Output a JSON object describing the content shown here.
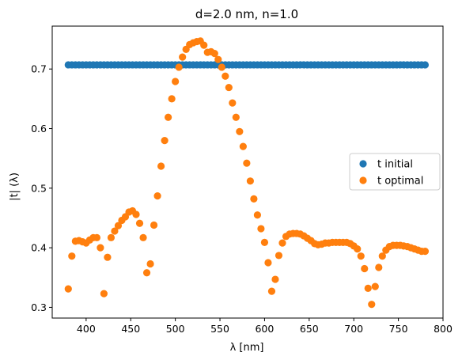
{
  "chart_data": {
    "type": "scatter",
    "title": "d=2.0 nm, n=1.0",
    "xlabel": "λ [nm]",
    "ylabel": "|t| (λ)",
    "xlim": [
      362,
      800
    ],
    "ylim": [
      0.282,
      0.772
    ],
    "xticks": [
      400,
      450,
      500,
      550,
      600,
      650,
      700,
      750,
      800
    ],
    "yticks": [
      0.3,
      0.4,
      0.5,
      0.6,
      0.7
    ],
    "legend_position": "center-right",
    "grid": false,
    "series": [
      {
        "name": "t initial",
        "color": "#1f77b4",
        "x_start": 380,
        "x_end": 780,
        "x_step": 4,
        "constant_y": 0.707
      },
      {
        "name": "t optimal",
        "color": "#ff7f0e",
        "x": [
          380,
          384,
          388,
          392,
          396,
          400,
          404,
          408,
          412,
          416,
          420,
          424,
          428,
          432,
          436,
          440,
          444,
          448,
          452,
          456,
          460,
          464,
          468,
          472,
          476,
          480,
          484,
          488,
          492,
          496,
          500,
          504,
          508,
          512,
          516,
          520,
          524,
          528,
          532,
          536,
          540,
          544,
          548,
          552,
          556,
          560,
          564,
          568,
          572,
          576,
          580,
          584,
          588,
          592,
          596,
          600,
          604,
          608,
          612,
          616,
          620,
          624,
          628,
          632,
          636,
          640,
          644,
          648,
          652,
          656,
          660,
          664,
          668,
          672,
          676,
          680,
          684,
          688,
          692,
          696,
          700,
          704,
          708,
          712,
          716,
          720,
          724,
          728,
          732,
          736,
          740,
          744,
          748,
          752,
          756,
          760,
          764,
          768,
          772,
          776,
          780
        ],
        "y": [
          0.331,
          0.386,
          0.411,
          0.412,
          0.41,
          0.408,
          0.413,
          0.417,
          0.417,
          0.4,
          0.323,
          0.384,
          0.417,
          0.428,
          0.437,
          0.446,
          0.452,
          0.46,
          0.462,
          0.456,
          0.441,
          0.417,
          0.358,
          0.373,
          0.438,
          0.487,
          0.537,
          0.58,
          0.619,
          0.65,
          0.679,
          0.703,
          0.72,
          0.733,
          0.741,
          0.744,
          0.746,
          0.747,
          0.74,
          0.728,
          0.729,
          0.726,
          0.716,
          0.703,
          0.688,
          0.669,
          0.643,
          0.619,
          0.595,
          0.57,
          0.542,
          0.512,
          0.482,
          0.455,
          0.432,
          0.409,
          0.375,
          0.327,
          0.347,
          0.387,
          0.408,
          0.419,
          0.423,
          0.424,
          0.424,
          0.423,
          0.42,
          0.416,
          0.412,
          0.407,
          0.405,
          0.406,
          0.408,
          0.408,
          0.409,
          0.409,
          0.409,
          0.409,
          0.409,
          0.407,
          0.403,
          0.398,
          0.386,
          0.365,
          0.332,
          0.305,
          0.335,
          0.367,
          0.386,
          0.396,
          0.402,
          0.404,
          0.404,
          0.404,
          0.403,
          0.402,
          0.4,
          0.398,
          0.396,
          0.394,
          0.394
        ]
      }
    ]
  }
}
